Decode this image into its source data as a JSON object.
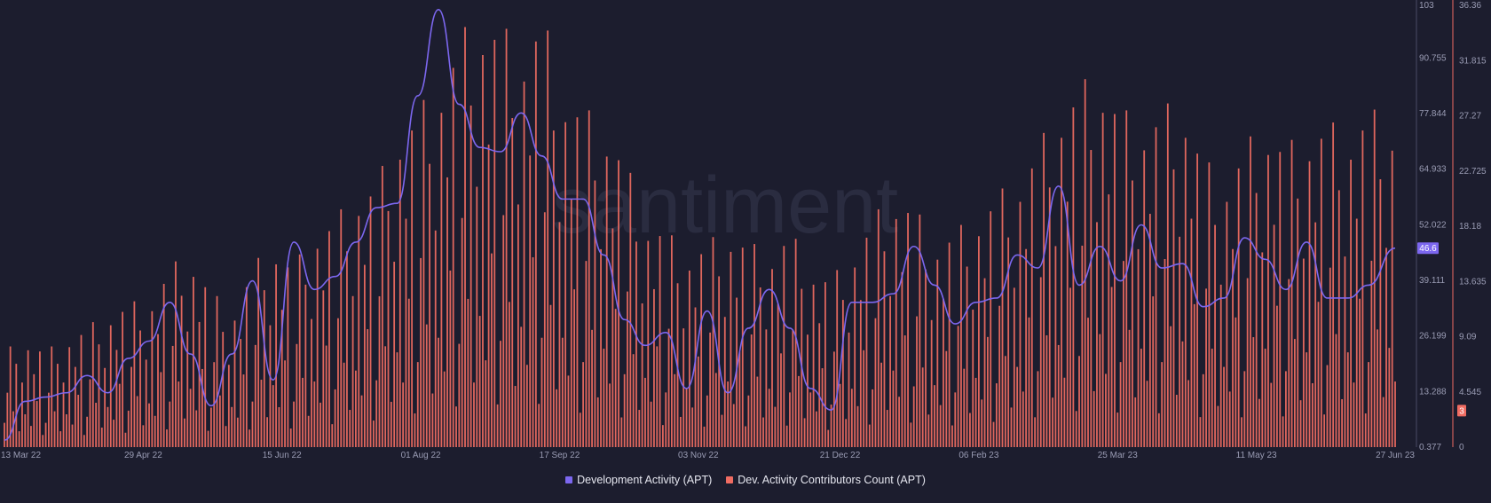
{
  "watermark": "santiment",
  "chart_data": {
    "type": "bar+line",
    "x_range": [
      "13 Mar 22",
      "27 Jun 23"
    ],
    "x_ticks": [
      "13 Mar 22",
      "29 Apr 22",
      "15 Jun 22",
      "01 Aug 22",
      "17 Sep 22",
      "03 Nov 22",
      "21 Dec 22",
      "06 Feb 23",
      "25 Mar 23",
      "11 May 23",
      "27 Jun 23"
    ],
    "grid": false,
    "legend_position": "bottom-center",
    "series": [
      {
        "name": "Development Activity (APT)",
        "type": "line",
        "axis": "left",
        "color": "#7c67ef",
        "ylim": [
          0.377,
          103
        ],
        "y_ticks": [
          "103",
          "90.755",
          "77.844",
          "64.933",
          "52.022",
          "39.111",
          "26.199",
          "13.288",
          "0.377"
        ],
        "last_value_label": "46.6",
        "dates": [
          "2022-03-13",
          "2022-03-20",
          "2022-03-27",
          "2022-04-03",
          "2022-04-10",
          "2022-04-17",
          "2022-04-24",
          "2022-05-01",
          "2022-05-08",
          "2022-05-15",
          "2022-05-22",
          "2022-05-29",
          "2022-06-05",
          "2022-06-12",
          "2022-06-19",
          "2022-06-26",
          "2022-07-03",
          "2022-07-10",
          "2022-07-17",
          "2022-07-24",
          "2022-07-31",
          "2022-08-07",
          "2022-08-14",
          "2022-08-21",
          "2022-08-28",
          "2022-09-04",
          "2022-09-11",
          "2022-09-18",
          "2022-09-25",
          "2022-10-02",
          "2022-10-09",
          "2022-10-16",
          "2022-10-23",
          "2022-10-30",
          "2022-11-06",
          "2022-11-13",
          "2022-11-20",
          "2022-11-27",
          "2022-12-04",
          "2022-12-11",
          "2022-12-18",
          "2022-12-25",
          "2023-01-01",
          "2023-01-08",
          "2023-01-15",
          "2023-01-22",
          "2023-01-29",
          "2023-02-05",
          "2023-02-12",
          "2023-02-19",
          "2023-02-26",
          "2023-03-05",
          "2023-03-12",
          "2023-03-19",
          "2023-03-26",
          "2023-04-02",
          "2023-04-09",
          "2023-04-16",
          "2023-04-23",
          "2023-04-30",
          "2023-05-07",
          "2023-05-14",
          "2023-05-21",
          "2023-05-28",
          "2023-06-04",
          "2023-06-11",
          "2023-06-18",
          "2023-06-27"
        ],
        "values": [
          2,
          11,
          12,
          13,
          17,
          13,
          21,
          25,
          34,
          22,
          10,
          22,
          39,
          16,
          48,
          37,
          40,
          48,
          56,
          57,
          82,
          102,
          80,
          70,
          69,
          78,
          68,
          58,
          58,
          45,
          30,
          24,
          27,
          14,
          32,
          13,
          28,
          37,
          28,
          14,
          9,
          34,
          34,
          36,
          47,
          38,
          29,
          34,
          35,
          45,
          42,
          61,
          38,
          47,
          39,
          52,
          42,
          43,
          33,
          35,
          49,
          44,
          37,
          48,
          35,
          35,
          38,
          46.6
        ]
      },
      {
        "name": "Dev. Activity Contributors Count (APT)",
        "type": "bar",
        "axis": "right",
        "color": "#f06c62",
        "ylim": [
          0,
          36.36
        ],
        "y_ticks": [
          "36.36",
          "31.815",
          "27.27",
          "22.725",
          "18.18",
          "13.635",
          "9.09",
          "4.545",
          "0"
        ],
        "last_value_label": "3",
        "weekly_peak_dates": [
          "2022-03-13",
          "2022-03-20",
          "2022-03-27",
          "2022-04-03",
          "2022-04-10",
          "2022-04-17",
          "2022-04-24",
          "2022-05-01",
          "2022-05-08",
          "2022-05-15",
          "2022-05-22",
          "2022-05-29",
          "2022-06-05",
          "2022-06-12",
          "2022-06-19",
          "2022-06-26",
          "2022-07-03",
          "2022-07-10",
          "2022-07-17",
          "2022-07-24",
          "2022-07-31",
          "2022-08-07",
          "2022-08-14",
          "2022-08-21",
          "2022-08-28",
          "2022-09-04",
          "2022-09-11",
          "2022-09-18",
          "2022-09-25",
          "2022-10-02",
          "2022-10-09",
          "2022-10-16",
          "2022-10-23",
          "2022-10-30",
          "2022-11-06",
          "2022-11-13",
          "2022-11-20",
          "2022-11-27",
          "2022-12-04",
          "2022-12-11",
          "2022-12-18",
          "2022-12-25",
          "2023-01-01",
          "2023-01-08",
          "2023-01-15",
          "2023-01-22",
          "2023-01-29",
          "2023-02-05",
          "2023-02-12",
          "2023-02-19",
          "2023-02-26",
          "2023-03-05",
          "2023-03-12",
          "2023-03-19",
          "2023-03-26",
          "2023-04-02",
          "2023-04-09",
          "2023-04-16",
          "2023-04-23",
          "2023-04-30",
          "2023-05-07",
          "2023-05-14",
          "2023-05-21",
          "2023-05-28",
          "2023-06-04",
          "2023-06-11",
          "2023-06-18",
          "2023-06-27"
        ],
        "weekly_peaks": [
          8,
          9,
          8,
          9,
          10,
          11,
          12,
          12,
          15,
          16,
          13,
          11,
          15,
          17,
          15,
          18,
          19,
          21,
          22,
          26,
          28,
          30,
          34,
          36,
          35,
          33,
          36,
          30,
          28,
          27,
          24,
          19,
          18,
          16,
          17,
          18,
          17,
          16,
          18,
          15,
          14,
          16,
          19,
          21,
          20,
          17,
          18,
          19,
          21,
          22,
          25,
          28,
          30,
          31,
          28,
          27,
          28,
          29,
          24,
          22,
          25,
          27,
          25,
          26,
          27,
          26,
          28,
          27
        ]
      }
    ]
  }
}
